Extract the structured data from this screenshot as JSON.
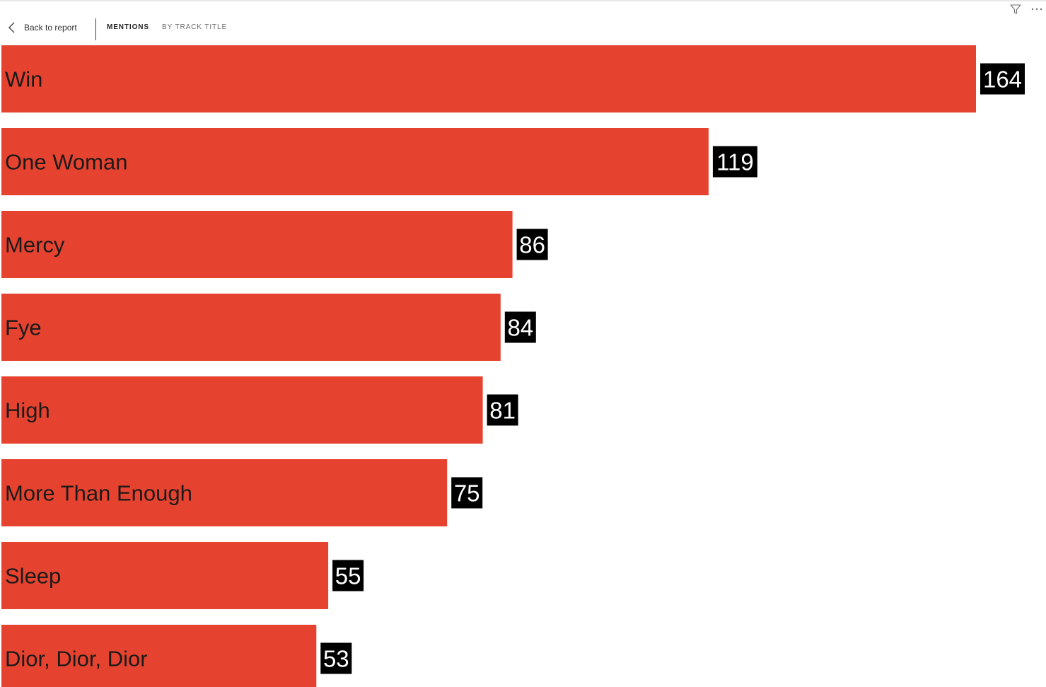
{
  "header": {
    "back_label": "Back to report",
    "tabs": [
      {
        "label": "MENTIONS",
        "active": true
      },
      {
        "label": "BY TRACK TITLE",
        "active": false
      }
    ],
    "icons": [
      "chevron-left-icon",
      "filter-icon",
      "more-options-icon"
    ]
  },
  "chart_data": {
    "type": "bar",
    "orientation": "horizontal",
    "categories": [
      "Win",
      "One Woman",
      "Mercy",
      "Fye",
      "High",
      "More Than Enough",
      "Sleep",
      "Dior, Dior, Dior"
    ],
    "values": [
      164,
      119,
      86,
      84,
      81,
      75,
      55,
      53
    ],
    "xlim": [
      0,
      164
    ],
    "bar_color": "#e5432f",
    "label_bg_color": "#000000",
    "label_text_color": "#ffffff",
    "category_text_color": "#1a1a1a"
  }
}
